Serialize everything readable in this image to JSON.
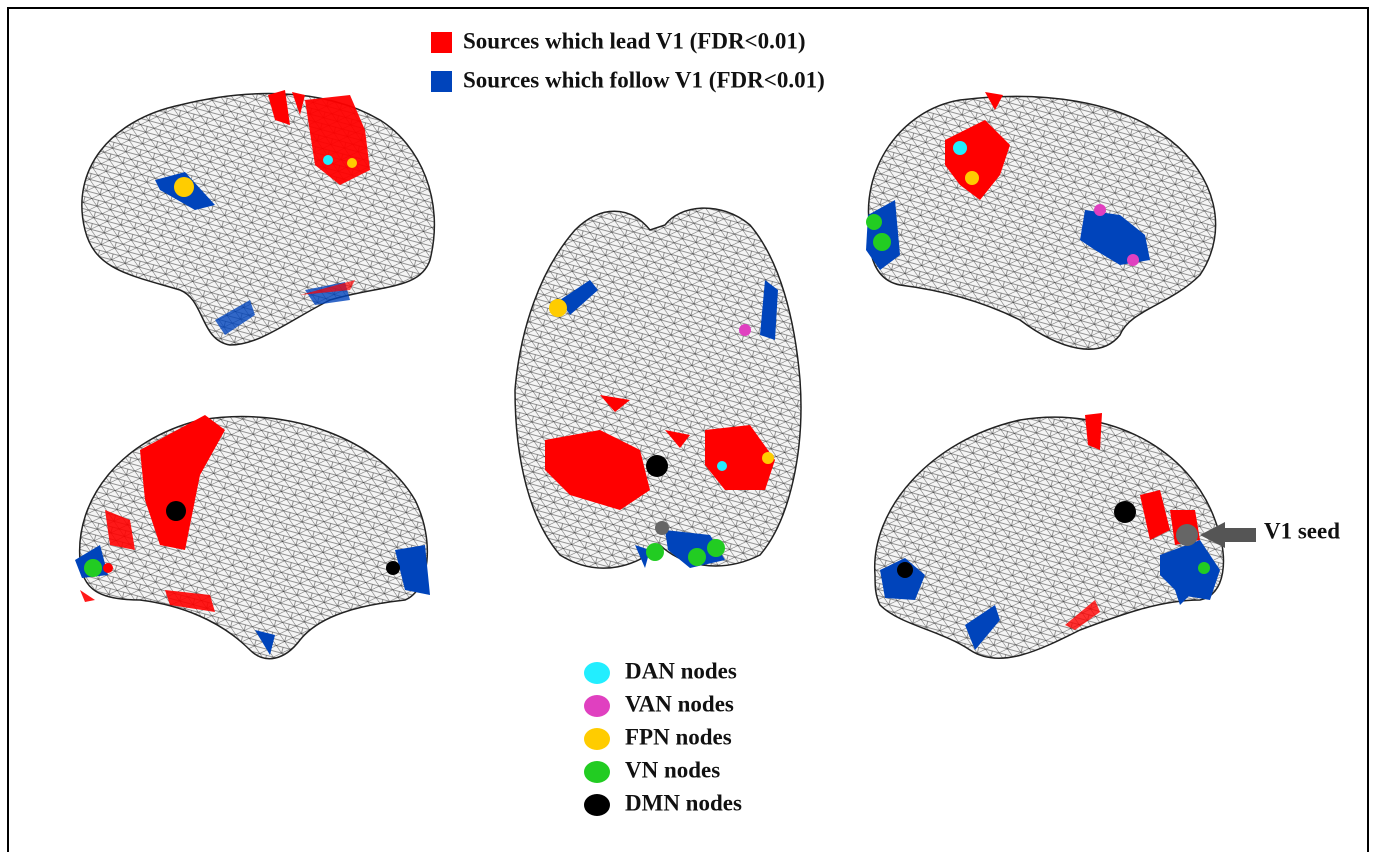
{
  "legend_top": [
    {
      "label": "Sources which lead V1 (FDR<0.01)",
      "color": "#ff0000"
    },
    {
      "label": "Sources which follow V1 (FDR<0.01)",
      "color": "#0044bb"
    }
  ],
  "node_legend": [
    {
      "label": "DAN nodes",
      "color": "#22eeff"
    },
    {
      "label": "VAN nodes",
      "color": "#e040c0"
    },
    {
      "label": "FPN nodes",
      "color": "#ffcc00"
    },
    {
      "label": "VN nodes",
      "color": "#22cc22"
    },
    {
      "label": "DMN nodes",
      "color": "#000000"
    }
  ],
  "annotation": "V1 seed"
}
